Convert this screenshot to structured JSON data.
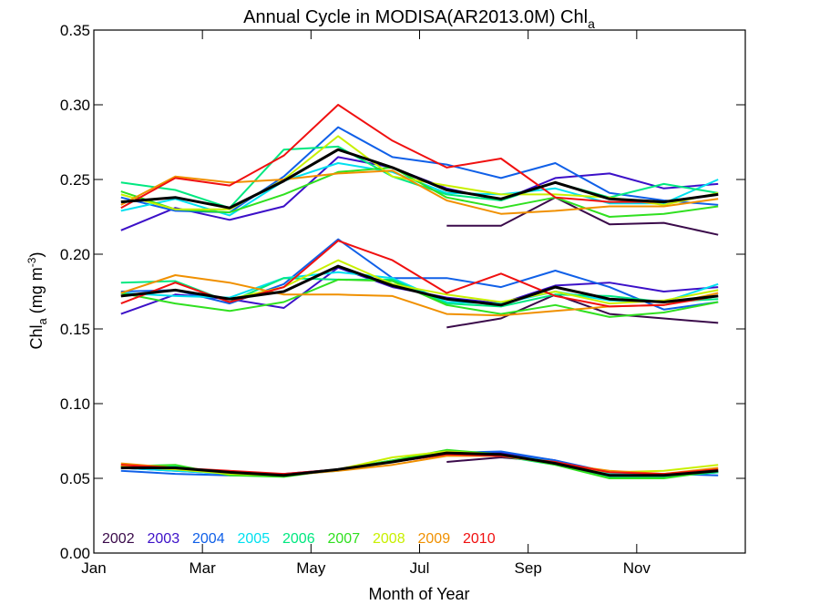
{
  "chart_data": {
    "type": "line",
    "title": "Annual Cycle in MODISA(AR2013.0M) Chl",
    "title_subscript": "a",
    "ylabel": {
      "main": "Chl",
      "sub": "a",
      "units": " (mg m",
      "sup": "-3",
      "close": ")"
    },
    "xlabel": "Month of Year",
    "xlim": [
      1,
      13
    ],
    "ylim": [
      0.0,
      0.35
    ],
    "xticks": [
      {
        "value": 1,
        "label": "Jan"
      },
      {
        "value": 3,
        "label": "Mar"
      },
      {
        "value": 5,
        "label": "May"
      },
      {
        "value": 7,
        "label": "Jul"
      },
      {
        "value": 9,
        "label": "Sep"
      },
      {
        "value": 11,
        "label": "Nov"
      }
    ],
    "yticks": [
      {
        "value": 0.0,
        "label": "0.00"
      },
      {
        "value": 0.05,
        "label": "0.05"
      },
      {
        "value": 0.1,
        "label": "0.10"
      },
      {
        "value": 0.15,
        "label": "0.15"
      },
      {
        "value": 0.2,
        "label": "0.20"
      },
      {
        "value": 0.25,
        "label": "0.25"
      },
      {
        "value": 0.3,
        "label": "0.30"
      },
      {
        "value": 0.35,
        "label": "0.35"
      }
    ],
    "grid": false,
    "legend_position": "bottom-left",
    "x": [
      1.5,
      2.5,
      3.5,
      4.5,
      5.5,
      6.5,
      7.5,
      8.5,
      9.5,
      10.5,
      11.5,
      12.5
    ],
    "series": [
      {
        "name": "2002",
        "color": "#3a0a4a",
        "groups": [
          [
            null,
            null,
            null,
            null,
            null,
            null,
            0.219,
            0.219,
            0.238,
            0.22,
            0.221,
            0.213
          ],
          [
            null,
            null,
            null,
            null,
            null,
            null,
            0.151,
            0.157,
            0.173,
            0.16,
            0.157,
            0.154
          ],
          [
            null,
            null,
            null,
            null,
            null,
            null,
            0.061,
            0.064,
            0.061,
            0.053,
            0.052,
            0.054
          ]
        ]
      },
      {
        "name": "2003",
        "color": "#3c10c8",
        "groups": [
          [
            0.216,
            0.231,
            0.223,
            0.232,
            0.265,
            0.258,
            0.244,
            0.236,
            0.251,
            0.254,
            0.244,
            0.247
          ],
          [
            0.16,
            0.173,
            0.17,
            0.164,
            0.191,
            0.178,
            0.171,
            0.167,
            0.179,
            0.181,
            0.175,
            0.178
          ],
          [
            0.057,
            0.055,
            0.053,
            0.053,
            0.056,
            0.061,
            0.066,
            0.067,
            0.062,
            0.053,
            0.053,
            0.055
          ]
        ]
      },
      {
        "name": "2004",
        "color": "#1060e8",
        "groups": [
          [
            0.238,
            0.229,
            0.228,
            0.252,
            0.285,
            0.265,
            0.26,
            0.251,
            0.261,
            0.241,
            0.236,
            0.233
          ],
          [
            0.175,
            0.176,
            0.167,
            0.18,
            0.21,
            0.184,
            0.184,
            0.178,
            0.189,
            0.178,
            0.163,
            0.168
          ],
          [
            0.055,
            0.053,
            0.052,
            0.052,
            0.056,
            0.062,
            0.067,
            0.068,
            0.062,
            0.054,
            0.053,
            0.052
          ]
        ]
      },
      {
        "name": "2005",
        "color": "#00e0f0",
        "groups": [
          [
            0.229,
            0.237,
            0.226,
            0.249,
            0.261,
            0.255,
            0.241,
            0.24,
            0.244,
            0.234,
            0.234,
            0.25
          ],
          [
            0.174,
            0.172,
            0.171,
            0.184,
            0.188,
            0.184,
            0.168,
            0.167,
            0.175,
            0.169,
            0.168,
            0.18
          ],
          [
            0.057,
            0.055,
            0.053,
            0.052,
            0.055,
            0.062,
            0.066,
            0.066,
            0.061,
            0.053,
            0.052,
            0.054
          ]
        ]
      },
      {
        "name": "2006",
        "color": "#00e880",
        "groups": [
          [
            0.248,
            0.243,
            0.231,
            0.27,
            0.272,
            0.252,
            0.24,
            0.236,
            0.248,
            0.238,
            0.247,
            0.241
          ],
          [
            0.181,
            0.182,
            0.168,
            0.184,
            0.183,
            0.183,
            0.167,
            0.165,
            0.173,
            0.172,
            0.168,
            0.17
          ],
          [
            0.058,
            0.058,
            0.053,
            0.052,
            0.056,
            0.061,
            0.068,
            0.065,
            0.059,
            0.051,
            0.051,
            0.054
          ]
        ]
      },
      {
        "name": "2007",
        "color": "#30e020",
        "groups": [
          [
            0.242,
            0.23,
            0.228,
            0.24,
            0.255,
            0.258,
            0.238,
            0.231,
            0.238,
            0.225,
            0.227,
            0.232
          ],
          [
            0.174,
            0.167,
            0.162,
            0.168,
            0.183,
            0.182,
            0.166,
            0.16,
            0.166,
            0.158,
            0.161,
            0.168
          ],
          [
            0.058,
            0.059,
            0.052,
            0.051,
            0.056,
            0.062,
            0.069,
            0.066,
            0.059,
            0.05,
            0.05,
            0.055
          ]
        ]
      },
      {
        "name": "2008",
        "color": "#c8f000",
        "groups": [
          [
            0.24,
            0.23,
            0.23,
            0.25,
            0.279,
            0.252,
            0.246,
            0.24,
            0.24,
            0.238,
            0.233,
            0.241
          ],
          [
            0.172,
            0.176,
            0.17,
            0.178,
            0.196,
            0.18,
            0.173,
            0.168,
            0.175,
            0.167,
            0.169,
            0.176
          ],
          [
            0.058,
            0.056,
            0.053,
            0.052,
            0.056,
            0.064,
            0.068,
            0.066,
            0.06,
            0.054,
            0.055,
            0.059
          ]
        ]
      },
      {
        "name": "2009",
        "color": "#f09000",
        "groups": [
          [
            0.233,
            0.252,
            0.248,
            0.25,
            0.254,
            0.256,
            0.236,
            0.227,
            0.229,
            0.232,
            0.232,
            0.237
          ],
          [
            0.174,
            0.186,
            0.181,
            0.173,
            0.173,
            0.172,
            0.16,
            0.159,
            0.162,
            0.165,
            0.166,
            0.174
          ],
          [
            0.06,
            0.057,
            0.054,
            0.052,
            0.055,
            0.059,
            0.065,
            0.065,
            0.06,
            0.055,
            0.053,
            0.057
          ]
        ]
      },
      {
        "name": "2010",
        "color": "#f01010",
        "groups": [
          [
            0.231,
            0.251,
            0.246,
            0.266,
            0.3,
            0.276,
            0.258,
            0.264,
            0.238,
            0.235,
            0.235,
            0.24
          ],
          [
            0.167,
            0.181,
            0.168,
            0.178,
            0.209,
            0.196,
            0.174,
            0.187,
            0.172,
            0.165,
            0.166,
            0.172
          ],
          [
            0.059,
            0.057,
            0.055,
            0.053,
            0.056,
            0.061,
            0.066,
            0.065,
            0.061,
            0.054,
            0.053,
            0.056
          ]
        ]
      }
    ],
    "mean_series": {
      "color": "#000000",
      "groups": [
        [
          0.235,
          0.238,
          0.231,
          0.249,
          0.27,
          0.258,
          0.243,
          0.237,
          0.248,
          0.237,
          0.235,
          0.24
        ],
        [
          0.172,
          0.176,
          0.17,
          0.175,
          0.192,
          0.179,
          0.17,
          0.166,
          0.178,
          0.17,
          0.168,
          0.172
        ],
        [
          0.057,
          0.057,
          0.054,
          0.052,
          0.056,
          0.061,
          0.067,
          0.066,
          0.06,
          0.052,
          0.052,
          0.055
        ]
      ]
    }
  }
}
